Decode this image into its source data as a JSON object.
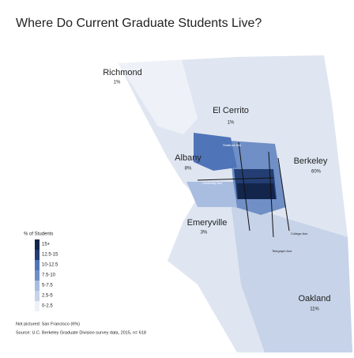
{
  "title": "Where Do Current Graduate Students Live?",
  "regions": [
    {
      "name": "Richmond",
      "share": "1%"
    },
    {
      "name": "El Cerrito",
      "share": "1%"
    },
    {
      "name": "Albany",
      "share": "8%"
    },
    {
      "name": "Berkeley",
      "share": "60%"
    },
    {
      "name": "Emeryville",
      "share": "3%"
    },
    {
      "name": "Oakland",
      "share": "11%"
    }
  ],
  "streets": [
    "Shattuck Ave.",
    "University Ave",
    "College Ave.",
    "Telegraph Ave."
  ],
  "legend": {
    "title": "% of Students",
    "items": [
      "15+",
      "12.5-15",
      "10-12.5",
      "7.5-10",
      "5-7.5",
      "2.5-5",
      "0-2.5"
    ]
  },
  "notes": [
    "Not pictured: San Francisco (6%)",
    "Source: U.C. Berkeley Graduate Division survey data, 2015, n= 618"
  ]
}
